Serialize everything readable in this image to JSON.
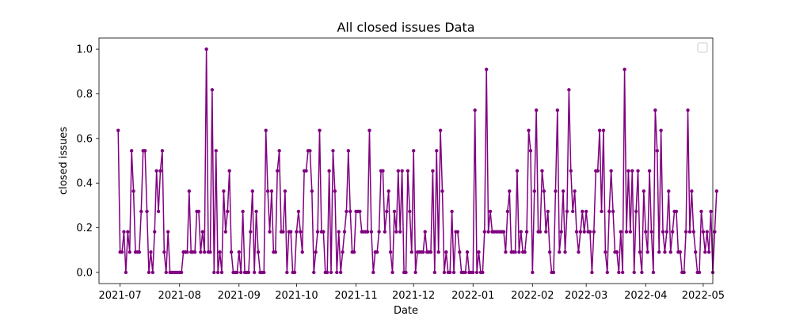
{
  "chart_data": {
    "type": "line",
    "title": "All closed issues Data",
    "xlabel": "Date",
    "ylabel": "closed issues",
    "color": "#800080",
    "marker": "circle",
    "grid": false,
    "legend": {
      "location": "top-right",
      "entries": []
    },
    "xlim": [
      "2021-06-20",
      "2022-05-06"
    ],
    "ylim": [
      -0.05,
      1.05
    ],
    "x_ticks": [
      {
        "date": "2021-07-01",
        "label": "2021-07"
      },
      {
        "date": "2021-08-01",
        "label": "2021-08"
      },
      {
        "date": "2021-09-01",
        "label": "2021-09"
      },
      {
        "date": "2021-10-01",
        "label": "2021-10"
      },
      {
        "date": "2021-11-01",
        "label": "2021-11"
      },
      {
        "date": "2021-12-01",
        "label": "2021-12"
      },
      {
        "date": "2022-01-01",
        "label": "2022-01"
      },
      {
        "date": "2022-02-01",
        "label": "2022-02"
      },
      {
        "date": "2022-03-01",
        "label": "2022-03"
      },
      {
        "date": "2022-04-01",
        "label": "2022-04"
      },
      {
        "date": "2022-05-01",
        "label": "2022-05"
      }
    ],
    "y_ticks": [
      {
        "value": 0.0,
        "label": "0.0"
      },
      {
        "value": 0.2,
        "label": "0.2"
      },
      {
        "value": 0.4,
        "label": "0.4"
      },
      {
        "value": 0.6,
        "label": "0.6"
      },
      {
        "value": 0.8,
        "label": "0.8"
      },
      {
        "value": 1.0,
        "label": "1.0"
      }
    ],
    "series": [
      {
        "start": "2021-06-30",
        "values": [
          0.636,
          0.091,
          0.091,
          0.182,
          0.0,
          0.182,
          0.091,
          0.545,
          0.364,
          0.091,
          0.091,
          0.091,
          0.273,
          0.545,
          0.545,
          0.273,
          0.0,
          0.091,
          0.0,
          0.182,
          0.455,
          0.273,
          0.455,
          0.545,
          0.091,
          0.0,
          0.182,
          0.0,
          0.0,
          0.0,
          0.0,
          0.0,
          0.0,
          0.0,
          0.091,
          0.091,
          0.091,
          0.364,
          0.091,
          0.091,
          0.091,
          0.273,
          0.273,
          0.091,
          0.182,
          0.091,
          1.0,
          0.091,
          0.091,
          0.818,
          0.0,
          0.545,
          0.0,
          0.091,
          0.0,
          0.364,
          0.182,
          0.273,
          0.455,
          0.091,
          0.0,
          0.0,
          0.0,
          0.091,
          0.0,
          0.273,
          0.0,
          0.0,
          0.0,
          0.182,
          0.364,
          0.0,
          0.273,
          0.091,
          0.0,
          0.0,
          0.0,
          0.636,
          0.364,
          0.182,
          0.364,
          0.091,
          0.091,
          0.455,
          0.545,
          0.182,
          0.182,
          0.364,
          0.0,
          0.182,
          0.182,
          0.0,
          0.0,
          0.182,
          0.273,
          0.182,
          0.091,
          0.455,
          0.455,
          0.545,
          0.545,
          0.364,
          0.0,
          0.091,
          0.182,
          0.636,
          0.182,
          0.182,
          0.0,
          0.0,
          0.455,
          0.0,
          0.545,
          0.364,
          0.0,
          0.182,
          0.0,
          0.091,
          0.182,
          0.273,
          0.545,
          0.273,
          0.091,
          0.091,
          0.273,
          0.273,
          0.273,
          0.182,
          0.182,
          0.182,
          0.182,
          0.636,
          0.182,
          0.0,
          0.091,
          0.091,
          0.182,
          0.455,
          0.455,
          0.182,
          0.273,
          0.364,
          0.091,
          0.0,
          0.273,
          0.182,
          0.455,
          0.182,
          0.455,
          0.0,
          0.0,
          0.455,
          0.273,
          0.091,
          0.545,
          0.0,
          0.091,
          0.091,
          0.091,
          0.091,
          0.182,
          0.091,
          0.091,
          0.091,
          0.455,
          0.0,
          0.545,
          0.091,
          0.636,
          0.364,
          0.0,
          0.091,
          0.0,
          0.0,
          0.273,
          0.0,
          0.182,
          0.182,
          0.091,
          0.0,
          0.0,
          0.0,
          0.091,
          0.0,
          0.0,
          0.0,
          0.727,
          0.0,
          0.091,
          0.0,
          0.0,
          0.182,
          0.909,
          0.182,
          0.273,
          0.182,
          0.182,
          0.182,
          0.182,
          0.182,
          0.182,
          0.182,
          0.091,
          0.273,
          0.364,
          0.091,
          0.091,
          0.091,
          0.455,
          0.091,
          0.182,
          0.091,
          0.091,
          0.182,
          0.636,
          0.545,
          0.0,
          0.364,
          0.727,
          0.182,
          0.182,
          0.455,
          0.364,
          0.182,
          0.273,
          0.091,
          0.0,
          0.0,
          0.364,
          0.727,
          0.091,
          0.182,
          0.364,
          0.091,
          0.273,
          0.818,
          0.455,
          0.273,
          0.364,
          0.182,
          0.091,
          0.182,
          0.273,
          0.182,
          0.273,
          0.182,
          0.182,
          0.0,
          0.182,
          0.455,
          0.455,
          0.636,
          0.273,
          0.636,
          0.091,
          0.0,
          0.273,
          0.455,
          0.273,
          0.091,
          0.091,
          0.0,
          0.182,
          0.0,
          0.909,
          0.182,
          0.455,
          0.182,
          0.455,
          0.0,
          0.273,
          0.455,
          0.091,
          0.0,
          0.364,
          0.182,
          0.091,
          0.455,
          0.182,
          0.0,
          0.727,
          0.545,
          0.091,
          0.636,
          0.182,
          0.091,
          0.182,
          0.364,
          0.091,
          0.182,
          0.273,
          0.273,
          0.091,
          0.091,
          0.0,
          0.0,
          0.182,
          0.727,
          0.182,
          0.364,
          0.182,
          0.091,
          0.0,
          0.0,
          0.273,
          0.182,
          0.091,
          0.182,
          0.091,
          0.273,
          0.0,
          0.182,
          0.364
        ]
      }
    ]
  }
}
